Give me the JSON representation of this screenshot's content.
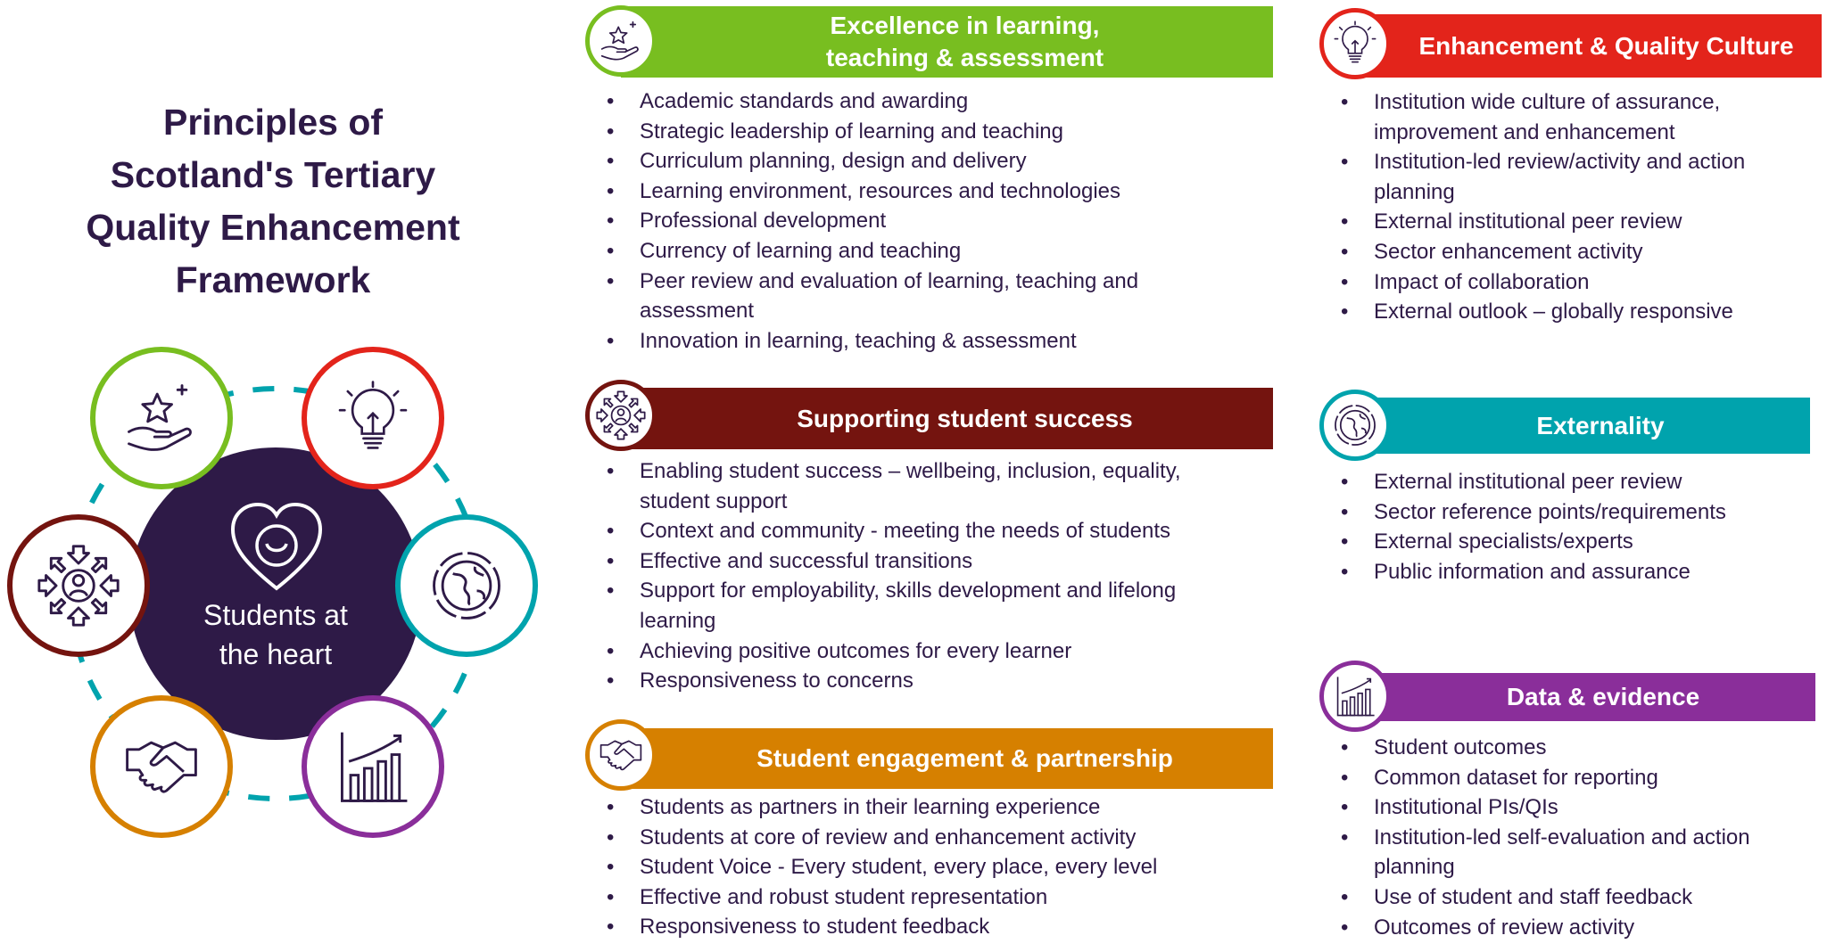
{
  "title": {
    "lines": [
      "Principles of",
      "Scotland's Tertiary",
      "Quality Enhancement",
      "Framework"
    ]
  },
  "hub": {
    "lines": [
      "Students at",
      "the heart"
    ],
    "icon": "heart-smile-icon"
  },
  "colors": {
    "navy": "#2e1a47",
    "green": "#78be20",
    "red": "#e3241b",
    "maroon": "#74140f",
    "orange": "#d68000",
    "teal": "#00a3ad",
    "purple": "#8a2e9a"
  },
  "sections": {
    "excellence": {
      "title_lines": [
        "Excellence in learning,",
        "teaching & assessment"
      ],
      "icon": "hand-star-icon",
      "items": [
        "Academic standards and awarding",
        "Strategic leadership of learning and teaching",
        "Curriculum planning, design and delivery",
        "Learning environment, resources and technologies",
        "Professional development",
        "Currency of learning and teaching",
        "Peer review and evaluation of learning, teaching and assessment",
        "Innovation in learning, teaching & assessment"
      ]
    },
    "support": {
      "title": "Supporting student success",
      "icon": "person-arrows-icon",
      "items": [
        "Enabling student success – wellbeing, inclusion, equality, student support",
        "Context and community - meeting the needs of students",
        "Effective  and successful transitions",
        "Support for employability, skills development and lifelong learning",
        "Achieving positive outcomes for every learner",
        "Responsiveness to concerns"
      ]
    },
    "engagement": {
      "title": "Student engagement & partnership",
      "icon": "handshake-icon",
      "items": [
        "Students as partners in their learning experience",
        "Students at core of review and enhancement activity",
        "Student Voice - Every student, every place, every level",
        "Effective and robust student representation",
        "Responsiveness to student feedback"
      ]
    },
    "culture": {
      "title": "Enhancement & Quality Culture",
      "icon": "lightbulb-icon",
      "items": [
        "Institution wide culture of assurance, improvement and enhancement",
        "Institution-led review/activity and action planning",
        "External institutional peer review",
        "Sector enhancement activity",
        "Impact of collaboration",
        "External outlook – globally responsive"
      ]
    },
    "externality": {
      "title": "Externality",
      "icon": "globe-icon",
      "items": [
        "External institutional peer review",
        "Sector reference points/requirements",
        "External specialists/experts",
        "Public information and assurance"
      ]
    },
    "data": {
      "title": "Data & evidence",
      "icon": "bar-chart-icon",
      "items": [
        "Student outcomes",
        "Common dataset for reporting",
        "Institutional PIs/QIs",
        "Institution-led self-evaluation and action planning",
        "Use of student and staff feedback",
        "Outcomes of review activity"
      ]
    }
  }
}
